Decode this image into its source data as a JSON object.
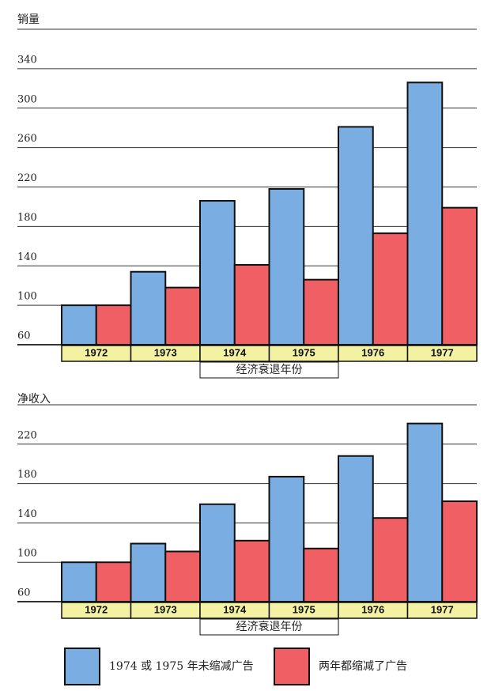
{
  "chart_data": [
    {
      "type": "bar",
      "y_label": "销量",
      "annotation": "经济衰退年份",
      "categories": [
        "1972",
        "1973",
        "1974",
        "1975",
        "1976",
        "1977"
      ],
      "series": [
        {
          "name": "1974 或 1975 年未缩减广告",
          "color": "#7aaee2",
          "values": [
            100,
            134,
            206,
            218,
            281,
            326
          ]
        },
        {
          "name": "两年都缩减了广告",
          "color": "#ef5f63",
          "values": [
            100,
            118,
            141,
            126,
            173,
            199
          ]
        }
      ],
      "ylim": [
        60,
        380
      ],
      "yticks": [
        60,
        100,
        140,
        180,
        220,
        260,
        300,
        340
      ]
    },
    {
      "type": "bar",
      "y_label": "净收入",
      "annotation": "经济衰退年份",
      "categories": [
        "1972",
        "1973",
        "1974",
        "1975",
        "1976",
        "1977"
      ],
      "series": [
        {
          "color": "#7aaee2",
          "values": [
            100,
            119,
            159,
            187,
            208,
            241
          ]
        },
        {
          "color": "#ef5f63",
          "values": [
            100,
            111,
            122,
            114,
            145,
            162
          ]
        }
      ],
      "ylim": [
        60,
        260
      ],
      "yticks": [
        60,
        100,
        140,
        180,
        220
      ]
    }
  ]
}
